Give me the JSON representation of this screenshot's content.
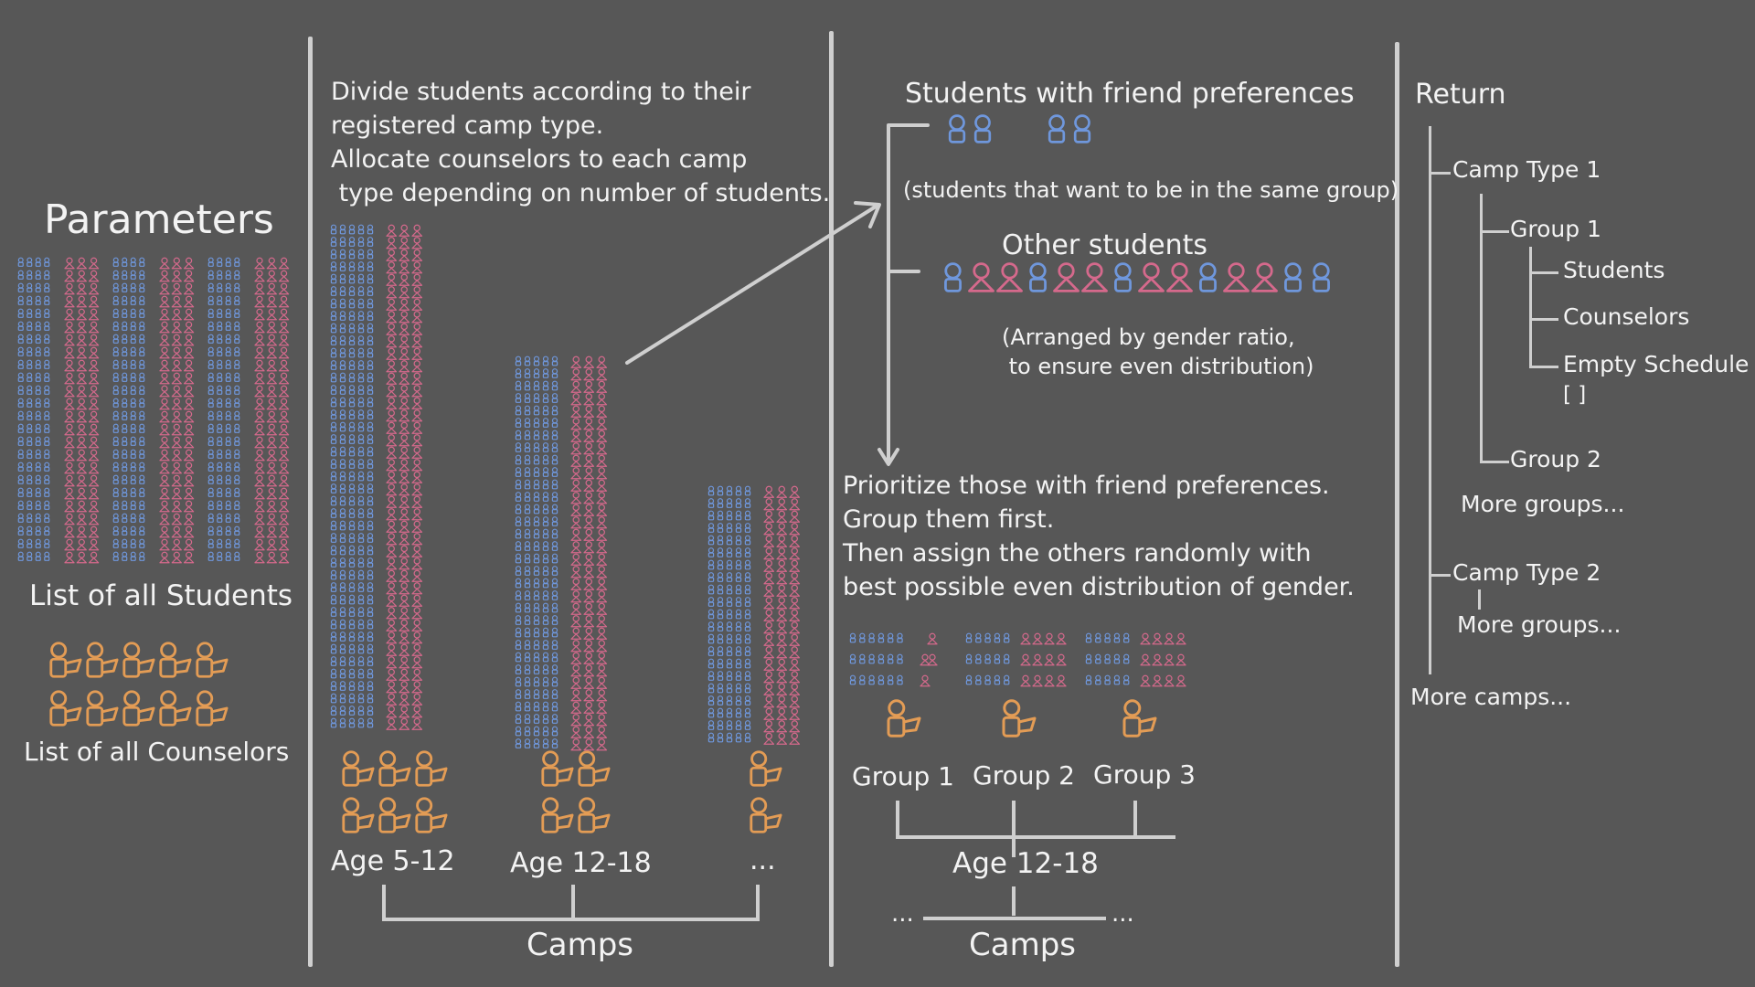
{
  "colors": {
    "background": "#575757",
    "male": "#6f97dc",
    "female": "#d5698c",
    "counselor": "#e39c55",
    "text": "#f3f3f3",
    "lines": "#cfcfcf"
  },
  "icons": {
    "male": "male-student-icon",
    "female": "female-student-icon",
    "counselor": "counselor-icon"
  },
  "parameters": {
    "title": "Parameters",
    "students_label": "List of all Students",
    "counselors_label": "List of all Counselors"
  },
  "divide": {
    "text": [
      "Divide students according to their",
      "registered camp type.",
      "Allocate counselors to each camp",
      " type depending on number of students."
    ],
    "camps": [
      {
        "label": "Age 5-12"
      },
      {
        "label": "Age 12-18"
      },
      {
        "label": "..."
      }
    ],
    "camps_label": "Camps"
  },
  "grouping": {
    "friend_title": "Students with friend preferences",
    "friend_note": "(students that want to be in the same group)",
    "others_title": "Other students",
    "others_note": [
      "(Arranged by gender ratio,",
      " to ensure even distribution)"
    ],
    "instructions": [
      "Prioritize those with friend preferences.",
      "Group them first.",
      "Then assign the others randomly with",
      "best possible even distribution of gender."
    ],
    "groups": [
      {
        "label": "Group 1"
      },
      {
        "label": "Group 2"
      },
      {
        "label": "Group 3"
      }
    ],
    "camp_label": "Age 12-18",
    "ellipsis_left": "...",
    "ellipsis_right": "...",
    "camps_label": "Camps"
  },
  "return": {
    "title": "Return",
    "camp_type_1": "Camp Type 1",
    "group_1": "Group 1",
    "students": "Students",
    "counselors": "Counselors",
    "empty_schedule": "Empty Schedule",
    "empty_brackets": "[ ]",
    "group_2": "Group 2",
    "more_groups_1": "More groups...",
    "camp_type_2": "Camp Type 2",
    "more_groups_2": "More groups...",
    "more_camps": "More camps..."
  }
}
